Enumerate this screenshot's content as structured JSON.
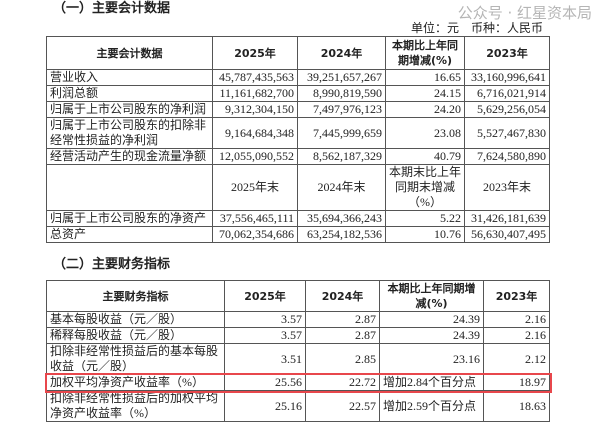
{
  "section1": {
    "title": "（一）主要会计数据",
    "unit": "单位：元　币种：人民币",
    "headers": [
      "主要会计数据",
      "2025年",
      "2024年",
      "本期比上年同期增减(%)",
      "2023年"
    ],
    "rows": [
      [
        "营业收入",
        "45,787,435,563",
        "39,251,657,267",
        "16.65",
        "33,160,996,641"
      ],
      [
        "利润总额",
        "11,161,682,700",
        "8,990,819,590",
        "24.15",
        "6,716,021,914"
      ],
      [
        "归属于上市公司股东的净利润",
        "9,312,304,150",
        "7,497,976,123",
        "24.20",
        "5,629,256,054"
      ],
      [
        "归属于上市公司股东的扣除非经常性损益的净利润",
        "9,164,684,348",
        "7,445,999,659",
        "23.08",
        "5,527,467,830"
      ],
      [
        "经营活动产生的现金流量净额",
        "12,055,090,552",
        "8,562,187,329",
        "40.79",
        "7,624,580,890"
      ]
    ],
    "subheaders": [
      "",
      "2025年末",
      "2024年末",
      "本期末比上年同期末增减（%）",
      "2023年末"
    ],
    "rows2": [
      [
        "归属于上市公司股东的净资产",
        "37,556,465,111",
        "35,694,366,243",
        "5.22",
        "31,426,181,639"
      ],
      [
        "总资产",
        "70,062,354,686",
        "63,254,182,536",
        "10.76",
        "56,630,407,495"
      ]
    ]
  },
  "section2": {
    "title": "（二）主要财务指标",
    "headers": [
      "主要财务指标",
      "2025年",
      "2024年",
      "本期比上年同期增减(%)",
      "2023年"
    ],
    "rows": [
      [
        "基本每股收益（元／股）",
        "3.57",
        "2.87",
        "24.39",
        "2.16"
      ],
      [
        "稀释每股收益（元／股）",
        "3.57",
        "2.87",
        "24.39",
        "2.16"
      ],
      [
        "扣除非经常性损益后的基本每股收益（元／股）",
        "3.51",
        "2.85",
        "23.16",
        "2.12"
      ],
      [
        "加权平均净资产收益率（%）",
        "25.56",
        "22.72",
        "增加2.84个百分点",
        "18.97"
      ],
      [
        "扣除非经常性损益后的加权平均净资产收益率（%）",
        "25.16",
        "22.57",
        "增加2.59个百分点",
        "18.63"
      ]
    ],
    "highlight_color": "#e8474c"
  },
  "watermark": "公众号 · 红星资本局"
}
